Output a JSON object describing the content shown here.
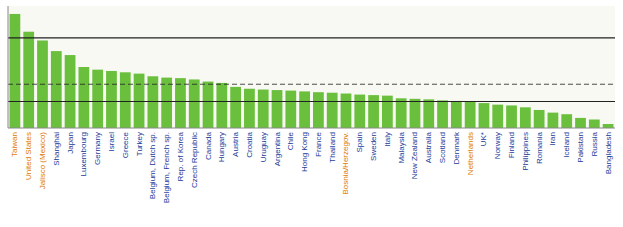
{
  "chart_data": {
    "type": "bar",
    "categories": [
      "Taiwan",
      "United States",
      "Jalisco (Mexico)",
      "Shanghai",
      "Japan",
      "Luxembourg",
      "Germany",
      "Israel",
      "Greece",
      "Turkey",
      "Belgium, Dutch sp.",
      "Belgium, French sp.",
      "Rep. of Korea",
      "Czech Republic",
      "Canada",
      "Hungary",
      "Austria",
      "Croatia",
      "Uruguay",
      "Argentina",
      "Chile",
      "Hong Kong",
      "France",
      "Thailand",
      "Bosnia/Herzegov.",
      "Spain",
      "Sweden",
      "Italy",
      "Malaysia",
      "New Zealand",
      "Australia",
      "Scotland",
      "Denmark",
      "Netherlands",
      "UK*",
      "Norway",
      "Finland",
      "Philippines",
      "Romania",
      "Iran",
      "Iceland",
      "Pakistan",
      "Russia",
      "Bangladesh"
    ],
    "values": [
      430,
      363,
      330,
      290,
      275,
      230,
      220,
      215,
      210,
      205,
      195,
      190,
      188,
      183,
      175,
      170,
      155,
      148,
      145,
      143,
      141,
      138,
      135,
      133,
      130,
      126,
      124,
      122,
      112,
      110,
      108,
      104,
      102,
      98,
      94,
      88,
      85,
      78,
      68,
      58,
      52,
      38,
      32,
      15
    ],
    "color": "#6abf3c",
    "label_colors": [
      "#e07800",
      "#e07800",
      "#e07800",
      "#1a3a99",
      "#1a3a99",
      "#1a3a99",
      "#1a3a99",
      "#1a3a99",
      "#1a3a99",
      "#1a3a99",
      "#1a3a99",
      "#1a3a99",
      "#1a3a99",
      "#1a3a99",
      "#1a3a99",
      "#1a3a99",
      "#1a3a99",
      "#1a3a99",
      "#1a3a99",
      "#1a3a99",
      "#1a3a99",
      "#1a3a99",
      "#1a3a99",
      "#1a3a99",
      "#e07800",
      "#1a3a99",
      "#1a3a99",
      "#1a3a99",
      "#1a3a99",
      "#1a3a99",
      "#1a3a99",
      "#1a3a99",
      "#1a3a99",
      "#e07800",
      "#1a3a99",
      "#1a3a99",
      "#1a3a99",
      "#1a3a99",
      "#1a3a99",
      "#1a3a99",
      "#1a3a99",
      "#1a3a99",
      "#1a3a99",
      "#1a3a99"
    ],
    "reference_lines": [
      {
        "value": 340,
        "line_style": "solid"
      },
      {
        "value": 165,
        "line_style": "dashed"
      },
      {
        "value": 100,
        "line_style": "solid"
      }
    ],
    "ylim": [
      0,
      460
    ],
    "tick_labels": "x",
    "grid": false
  }
}
